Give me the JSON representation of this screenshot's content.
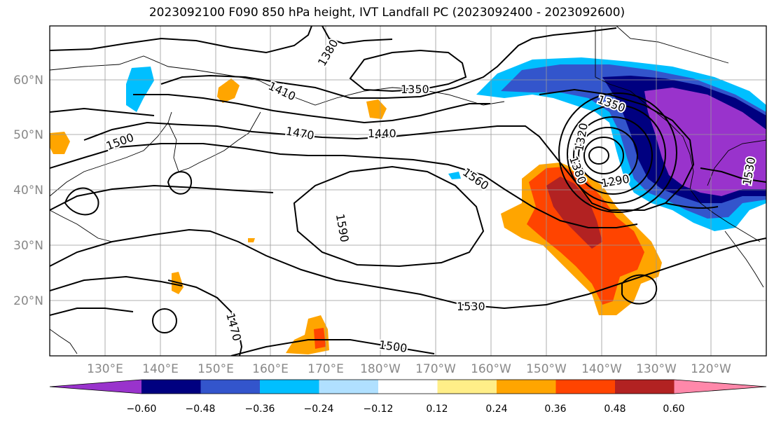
{
  "title": "2023092100 F090 850 hPa height, IVT Landfall PC (2023092400 - 2023092600)",
  "lon_labels": [
    "130°E",
    "140°E",
    "150°E",
    "160°E",
    "170°E",
    "180°W",
    "170°W",
    "160°W",
    "150°W",
    "140°W",
    "130°W",
    "120°W"
  ],
  "lat_labels": [
    "60°N",
    "50°N",
    "40°N",
    "30°N",
    "20°N"
  ],
  "contour_labels": [
    "1380",
    "1350",
    "1410",
    "1470",
    "1440",
    "1500",
    "1350",
    "1320",
    "1380",
    "1560",
    "1290",
    "1530",
    "1590",
    "1530",
    "1500",
    "1470"
  ],
  "colorbar": {
    "ticks": [
      "−0.60",
      "−0.48",
      "−0.36",
      "−0.24",
      "−0.12",
      "0.12",
      "0.24",
      "0.36",
      "0.48",
      "0.60"
    ],
    "colors": [
      "#9933cc",
      "#000080",
      "#3355cc",
      "#00bfff",
      "#b0e0ff",
      "#ffffff",
      "#ffee88",
      "#ffa500",
      "#ff4400",
      "#b22222",
      "#ff88aa"
    ]
  },
  "colors": {
    "contour": "#000000",
    "grid": "#999999",
    "axis_label": "#888888"
  }
}
